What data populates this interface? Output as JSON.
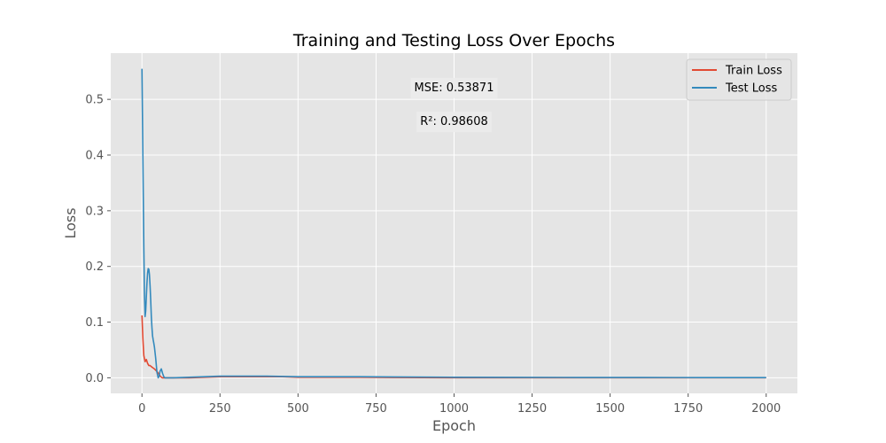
{
  "chart_data": {
    "type": "line",
    "title": "Training and Testing Loss Over Epochs",
    "xlabel": "Epoch",
    "ylabel": "Loss",
    "xlim": [
      -100,
      2100
    ],
    "ylim": [
      -0.028,
      0.583
    ],
    "xticks": [
      0,
      250,
      500,
      750,
      1000,
      1250,
      1500,
      1750,
      2000
    ],
    "yticks": [
      0.0,
      0.1,
      0.2,
      0.3,
      0.4,
      0.5
    ],
    "ytick_labels": [
      "0.0",
      "0.1",
      "0.2",
      "0.3",
      "0.4",
      "0.5"
    ],
    "grid": true,
    "legend_position": "top-right",
    "colors": {
      "background": "#e5e5e5",
      "grid": "#ffffff"
    },
    "annotations": [
      {
        "text": "MSE: 0.53871",
        "x": 1000,
        "y": 0.522
      },
      {
        "text": "R²: 0.98608",
        "x": 1000,
        "y": 0.461
      }
    ],
    "series": [
      {
        "name": "Train Loss",
        "color": "#e24a33",
        "x": [
          0,
          3,
          6,
          10,
          14,
          18,
          22,
          26,
          30,
          35,
          40,
          45,
          50,
          55,
          60,
          65,
          70,
          80,
          90,
          100,
          120,
          150,
          200,
          250,
          300,
          350,
          400,
          450,
          500,
          600,
          700,
          800,
          900,
          1000,
          1200,
          1400,
          1600,
          1800,
          2000
        ],
        "y": [
          0.112,
          0.07,
          0.04,
          0.029,
          0.033,
          0.026,
          0.022,
          0.022,
          0.02,
          0.018,
          0.016,
          0.013,
          0.01,
          0.006,
          0.002,
          0.0,
          0.0,
          0.0,
          0.0,
          0.0,
          0.0,
          0.0,
          0.001,
          0.002,
          0.002,
          0.002,
          0.002,
          0.002,
          0.001,
          0.001,
          0.001,
          0.0005,
          0.0003,
          0.0002,
          0.0001,
          0.0001,
          0.0001,
          0.0001,
          0.0001
        ]
      },
      {
        "name": "Test Loss",
        "color": "#348abd",
        "x": [
          0,
          2,
          4,
          6,
          8,
          10,
          12,
          14,
          16,
          18,
          20,
          22,
          24,
          26,
          28,
          30,
          32,
          34,
          36,
          38,
          40,
          44,
          48,
          52,
          55,
          58,
          62,
          66,
          70,
          73,
          76,
          80,
          90,
          100,
          150,
          200,
          250,
          300,
          350,
          400,
          500,
          600,
          700,
          800,
          1000,
          1200,
          1400,
          1600,
          1800,
          2000
        ],
        "y": [
          0.555,
          0.45,
          0.34,
          0.235,
          0.15,
          0.11,
          0.12,
          0.145,
          0.17,
          0.188,
          0.196,
          0.195,
          0.185,
          0.165,
          0.14,
          0.11,
          0.09,
          0.075,
          0.068,
          0.062,
          0.055,
          0.035,
          0.01,
          0.0,
          0.003,
          0.012,
          0.016,
          0.008,
          0.002,
          0.0,
          0.0,
          0.0,
          0.0,
          0.0,
          0.001,
          0.002,
          0.003,
          0.003,
          0.003,
          0.003,
          0.002,
          0.002,
          0.002,
          0.0015,
          0.001,
          0.0008,
          0.0006,
          0.0005,
          0.0004,
          0.0003
        ]
      }
    ]
  }
}
